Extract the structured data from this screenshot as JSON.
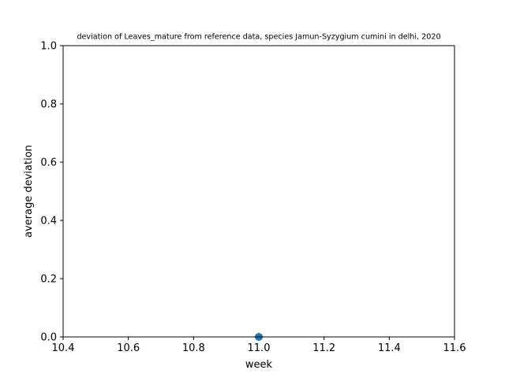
{
  "chart_data": {
    "type": "scatter",
    "title": "deviation of Leaves_mature from reference data, species Jamun-Syzygium cumini in delhi, 2020",
    "xlabel": "week",
    "ylabel": "average deviation",
    "xlim": [
      10.4,
      11.6
    ],
    "ylim": [
      0.0,
      1.0
    ],
    "x_ticks": [
      "10.4",
      "10.6",
      "10.8",
      "11.0",
      "11.2",
      "11.4",
      "11.6"
    ],
    "y_ticks": [
      "0.0",
      "0.2",
      "0.4",
      "0.6",
      "0.8",
      "1.0"
    ],
    "series": [
      {
        "x": [
          11.0
        ],
        "y": [
          0.0
        ],
        "color": "#1f77b4"
      }
    ],
    "grid": false,
    "legend": "none"
  }
}
